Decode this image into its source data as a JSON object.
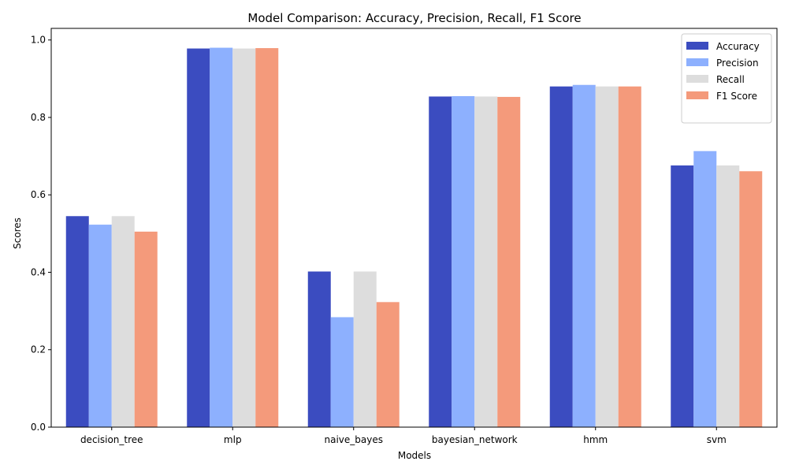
{
  "chart_data": {
    "type": "bar",
    "title": "Model Comparison: Accuracy, Precision, Recall, F1 Score",
    "xlabel": "Models",
    "ylabel": "Scores",
    "ylim": [
      0,
      1.03
    ],
    "yticks": [
      "0.0",
      "0.2",
      "0.4",
      "0.6",
      "0.8",
      "1.0"
    ],
    "grid": false,
    "legend_position": "top-right",
    "categories": [
      "decision_tree",
      "mlp",
      "naive_bayes",
      "bayesian_network",
      "hmm",
      "svm"
    ],
    "series": [
      {
        "name": "Accuracy",
        "color": "#3b4cc0",
        "values": [
          0.545,
          0.978,
          0.402,
          0.854,
          0.88,
          0.676
        ]
      },
      {
        "name": "Precision",
        "color": "#8db0fe",
        "values": [
          0.523,
          0.98,
          0.284,
          0.855,
          0.884,
          0.713
        ]
      },
      {
        "name": "Recall",
        "color": "#dddddd",
        "values": [
          0.545,
          0.978,
          0.402,
          0.854,
          0.88,
          0.676
        ]
      },
      {
        "name": "F1 Score",
        "color": "#f49a7b",
        "values": [
          0.505,
          0.979,
          0.323,
          0.853,
          0.88,
          0.661
        ]
      }
    ]
  }
}
